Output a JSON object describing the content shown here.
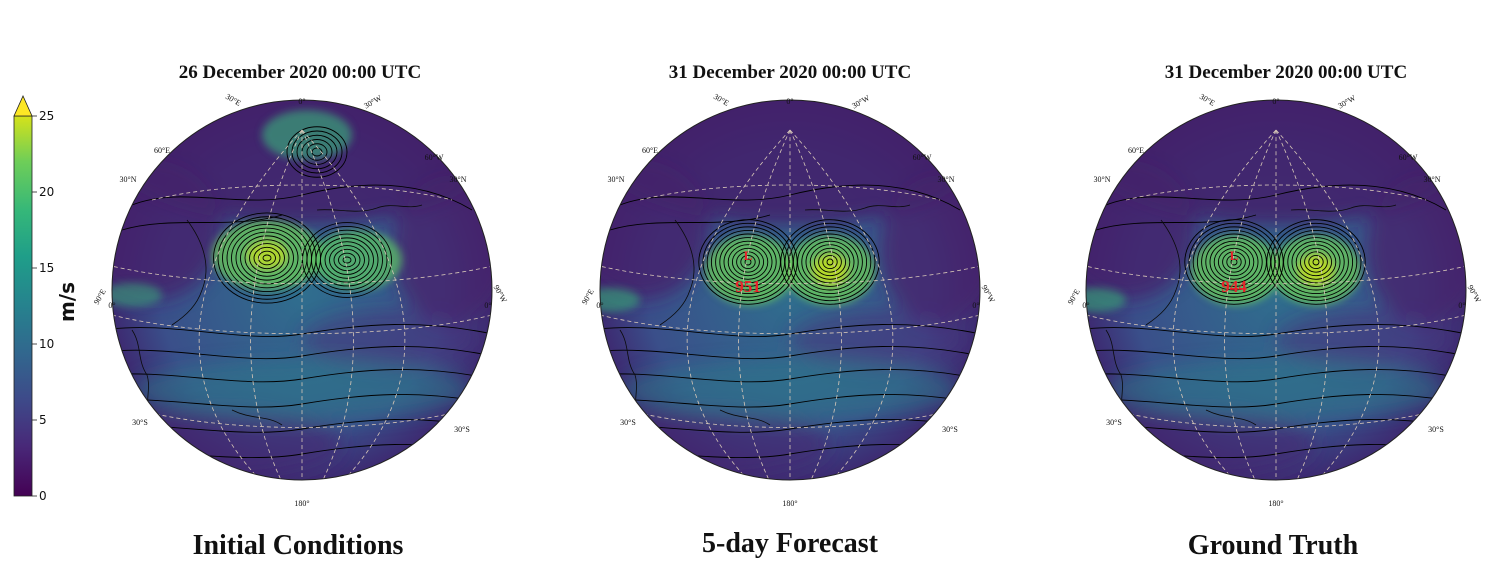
{
  "colorbar": {
    "unit": "m/s",
    "ticks": [
      "0",
      "5",
      "10",
      "15",
      "20",
      "25"
    ],
    "range": [
      0,
      25
    ],
    "extend": "max",
    "colormap": "viridis",
    "colors": [
      "#440154",
      "#3b528b",
      "#21918c",
      "#5ec962",
      "#fde725"
    ]
  },
  "panels": [
    {
      "title": "26 December 2020 00:00 UTC",
      "caption": "Initial Conditions",
      "low": null
    },
    {
      "title": "31 December 2020 00:00 UTC",
      "caption": "5-day Forecast",
      "low": {
        "symbol": "L",
        "value": "951"
      }
    },
    {
      "title": "31 December 2020 00:00 UTC",
      "caption": "Ground Truth",
      "low": {
        "symbol": "L",
        "value": "944"
      }
    }
  ],
  "grid_labels": {
    "top": "0°",
    "e30": "30°E",
    "w30": "30°W",
    "e60": "60°E",
    "w60": "60°W",
    "n30_left": "30°N",
    "n30_right": "30°N",
    "e90": "90°E",
    "w90": "90°W",
    "eq_left": "0°",
    "eq_right": "0°",
    "s30_left": "30°S",
    "s30_right": "30°S",
    "bottom": "180°"
  }
}
